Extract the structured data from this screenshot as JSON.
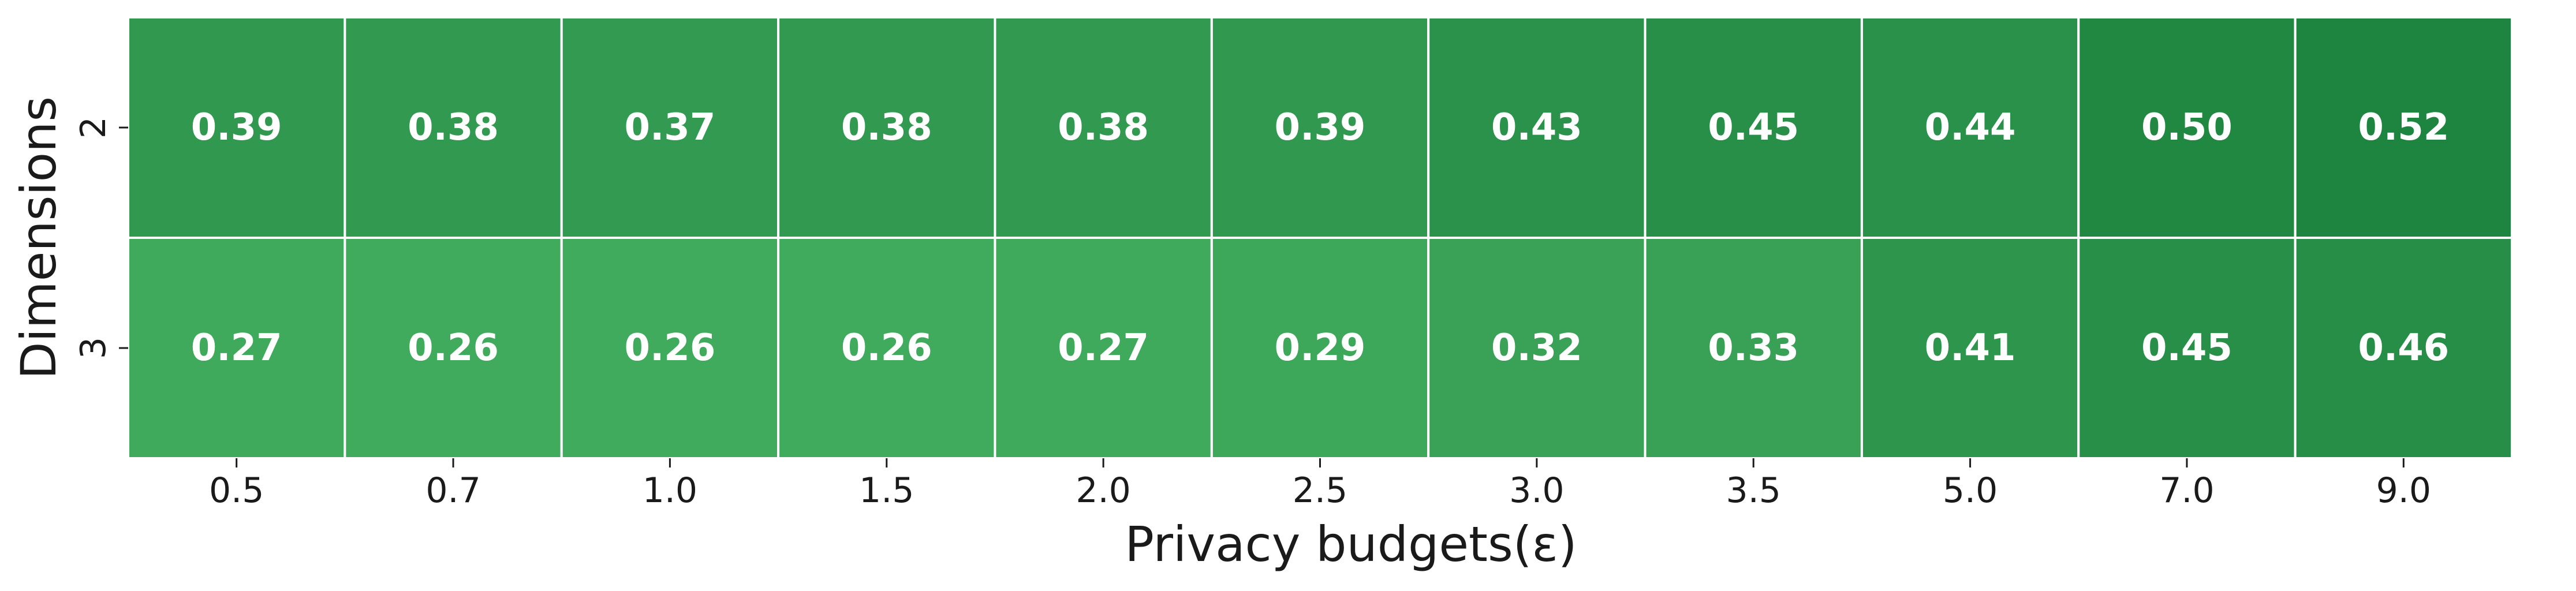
{
  "chart_data": {
    "type": "heatmap",
    "title": "",
    "xlabel": "Privacy budgets(ε)",
    "ylabel": "Dimensions",
    "x_categories": [
      "0.5",
      "0.7",
      "1.0",
      "1.5",
      "2.0",
      "2.5",
      "3.0",
      "3.5",
      "5.0",
      "7.0",
      "9.0"
    ],
    "y_categories": [
      "2",
      "3"
    ],
    "values": [
      [
        0.39,
        0.38,
        0.37,
        0.38,
        0.38,
        0.39,
        0.43,
        0.45,
        0.44,
        0.5,
        0.52
      ],
      [
        0.27,
        0.26,
        0.26,
        0.26,
        0.27,
        0.29,
        0.32,
        0.33,
        0.41,
        0.45,
        0.46
      ]
    ],
    "value_labels": [
      [
        "0.39",
        "0.38",
        "0.37",
        "0.38",
        "0.38",
        "0.39",
        "0.43",
        "0.45",
        "0.44",
        "0.50",
        "0.52"
      ],
      [
        "0.27",
        "0.26",
        "0.26",
        "0.26",
        "0.27",
        "0.29",
        "0.32",
        "0.33",
        "0.41",
        "0.45",
        "0.46"
      ]
    ],
    "colormap": "Greens",
    "color_low": "#41ab5d",
    "color_high": "#1e8540",
    "cell_border_color": "#ffffff",
    "label_color": "#ffffff",
    "colorbar": false,
    "grid": false
  }
}
